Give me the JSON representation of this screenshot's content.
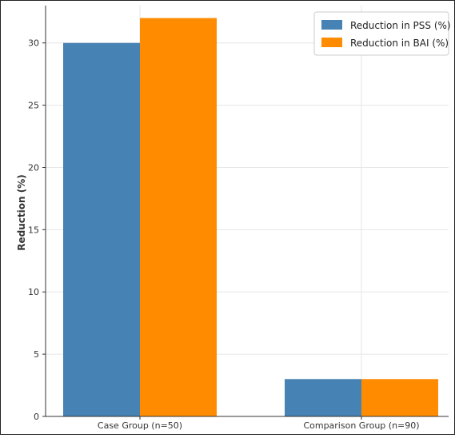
{
  "chart_data": {
    "type": "bar",
    "categories": [
      "Case Group (n=50)",
      "Comparison Group (n=90)"
    ],
    "series": [
      {
        "name": "Reduction in PSS (%)",
        "values": [
          30,
          3
        ],
        "color": "#4682b4"
      },
      {
        "name": "Reduction in BAI (%)",
        "values": [
          32,
          3
        ],
        "color": "#ff8c00"
      }
    ],
    "title": "",
    "xlabel": "",
    "ylabel": "Reduction (%)",
    "ylim": [
      0,
      33
    ],
    "yticks": [
      0,
      5,
      10,
      15,
      20,
      25,
      30
    ],
    "grid": true,
    "legend_position": "top-right"
  }
}
